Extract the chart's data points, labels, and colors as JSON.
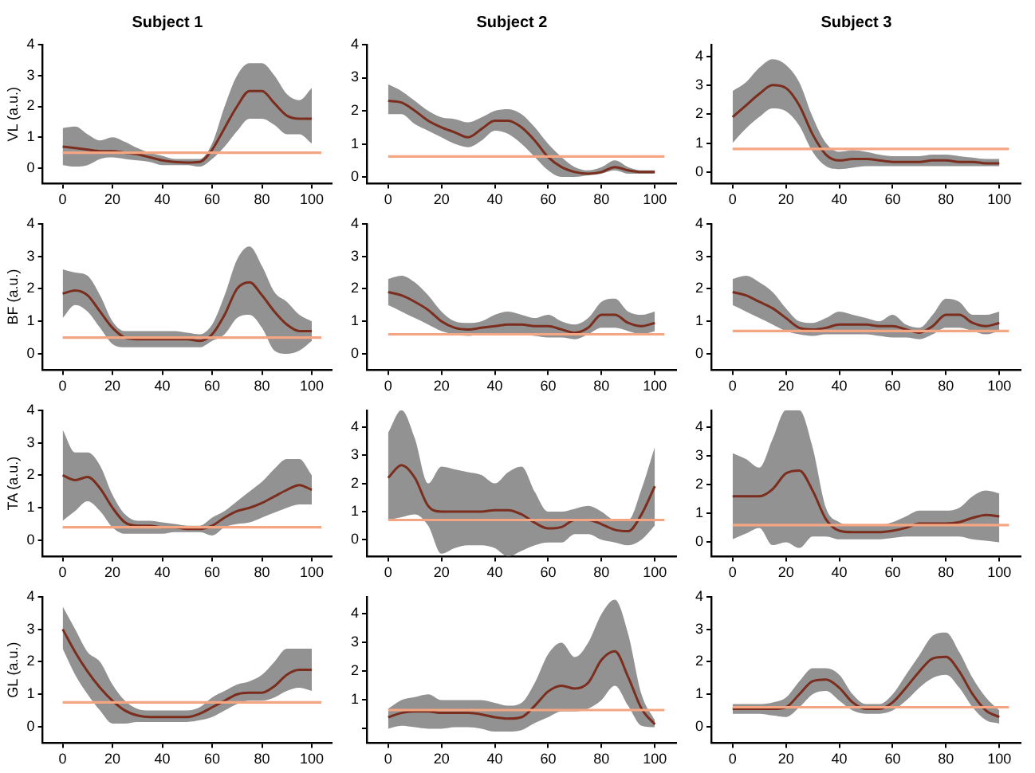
{
  "chart_data": [
    {
      "type": "line",
      "title": "Subject 1",
      "ylabel": "VL (a.u.)",
      "x": [
        0,
        5,
        10,
        15,
        20,
        25,
        30,
        35,
        40,
        45,
        50,
        55,
        60,
        65,
        70,
        75,
        80,
        85,
        90,
        95,
        100
      ],
      "xlim": [
        -8,
        108
      ],
      "ylim": [
        -0.5,
        4
      ],
      "xticks": [
        0,
        20,
        40,
        60,
        80,
        100
      ],
      "yticks": [
        0,
        1,
        2,
        3,
        4
      ],
      "ref_lines": [
        {
          "axis": "y",
          "value": 0.5,
          "color": "#f4a582"
        }
      ],
      "series": [
        {
          "color": "#7b2d1e",
          "values": [
            0.7,
            0.65,
            0.6,
            0.55,
            0.55,
            0.5,
            0.45,
            0.35,
            0.25,
            0.2,
            0.18,
            0.2,
            0.6,
            1.3,
            2.0,
            2.5,
            2.5,
            2.1,
            1.7,
            1.6,
            1.6
          ],
          "lower": [
            0.1,
            0.05,
            0.1,
            0.3,
            0.35,
            0.3,
            0.25,
            0.2,
            0.1,
            0.1,
            0.1,
            0.05,
            0.3,
            0.7,
            1.2,
            1.6,
            1.6,
            1.4,
            1.1,
            1.1,
            0.8
          ],
          "upper": [
            1.3,
            1.35,
            1.1,
            0.9,
            1.0,
            0.85,
            0.65,
            0.5,
            0.4,
            0.3,
            0.3,
            0.3,
            0.8,
            2.0,
            3.0,
            3.4,
            3.4,
            3.0,
            2.4,
            2.2,
            2.6
          ]
        }
      ]
    },
    {
      "type": "line",
      "title": "Subject 2",
      "x": [
        0,
        5,
        10,
        15,
        20,
        25,
        30,
        35,
        40,
        45,
        50,
        55,
        60,
        65,
        70,
        75,
        80,
        85,
        90,
        95,
        100
      ],
      "xlim": [
        -8,
        108
      ],
      "ylim": [
        -0.2,
        4
      ],
      "xticks": [
        0,
        20,
        40,
        60,
        80,
        100
      ],
      "yticks": [
        0,
        1,
        2,
        3,
        4
      ],
      "ref_lines": [
        {
          "axis": "y",
          "value": 0.62,
          "color": "#f4a582"
        }
      ],
      "series": [
        {
          "color": "#7b2d1e",
          "values": [
            2.3,
            2.25,
            2.0,
            1.7,
            1.5,
            1.35,
            1.2,
            1.45,
            1.7,
            1.7,
            1.5,
            1.1,
            0.6,
            0.3,
            0.15,
            0.1,
            0.15,
            0.3,
            0.2,
            0.15,
            0.15
          ],
          "lower": [
            1.9,
            1.9,
            1.6,
            1.4,
            1.2,
            1.0,
            0.9,
            1.1,
            1.4,
            1.3,
            1.0,
            0.6,
            0.2,
            0.0,
            0.0,
            0.05,
            0.1,
            0.2,
            0.1,
            0.1,
            0.1
          ],
          "upper": [
            2.8,
            2.6,
            2.3,
            2.0,
            1.8,
            1.75,
            1.65,
            1.8,
            2.0,
            2.05,
            1.9,
            1.5,
            1.0,
            0.6,
            0.3,
            0.2,
            0.3,
            0.5,
            0.3,
            0.2,
            0.2
          ]
        }
      ]
    },
    {
      "type": "line",
      "title": "Subject 3",
      "x": [
        0,
        5,
        10,
        15,
        20,
        25,
        30,
        35,
        40,
        45,
        50,
        55,
        60,
        65,
        70,
        75,
        80,
        85,
        90,
        95,
        100
      ],
      "xlim": [
        -8,
        108
      ],
      "ylim": [
        -0.4,
        4.4
      ],
      "xticks": [
        0,
        20,
        40,
        60,
        80,
        100
      ],
      "yticks": [
        0,
        1,
        2,
        3,
        4
      ],
      "ref_lines": [
        {
          "axis": "y",
          "value": 0.8,
          "color": "#f4a582"
        }
      ],
      "series": [
        {
          "color": "#7b2d1e",
          "values": [
            1.9,
            2.3,
            2.7,
            3.0,
            2.9,
            2.3,
            1.3,
            0.6,
            0.4,
            0.45,
            0.45,
            0.4,
            0.35,
            0.35,
            0.35,
            0.4,
            0.4,
            0.35,
            0.35,
            0.3,
            0.3
          ],
          "lower": [
            1.0,
            1.5,
            1.9,
            2.2,
            2.1,
            1.6,
            0.7,
            0.2,
            0.1,
            0.15,
            0.2,
            0.2,
            0.2,
            0.2,
            0.2,
            0.2,
            0.2,
            0.2,
            0.2,
            0.2,
            0.2
          ],
          "upper": [
            2.8,
            3.1,
            3.6,
            3.9,
            3.7,
            3.1,
            1.9,
            1.0,
            0.7,
            0.75,
            0.7,
            0.6,
            0.55,
            0.55,
            0.55,
            0.6,
            0.6,
            0.55,
            0.5,
            0.45,
            0.45
          ]
        }
      ]
    },
    {
      "type": "line",
      "ylabel": "BF (a.u.)",
      "x": [
        0,
        5,
        10,
        15,
        20,
        25,
        30,
        35,
        40,
        45,
        50,
        55,
        60,
        65,
        70,
        75,
        80,
        85,
        90,
        95,
        100
      ],
      "xlim": [
        -8,
        108
      ],
      "ylim": [
        -0.5,
        4
      ],
      "xticks": [
        0,
        20,
        40,
        60,
        80,
        100
      ],
      "yticks": [
        0,
        1,
        2,
        3,
        4
      ],
      "ref_lines": [
        {
          "axis": "y",
          "value": 0.5,
          "color": "#f4a582"
        }
      ],
      "series": [
        {
          "color": "#7b2d1e",
          "values": [
            1.85,
            1.95,
            1.8,
            1.3,
            0.8,
            0.5,
            0.45,
            0.45,
            0.45,
            0.45,
            0.45,
            0.4,
            0.6,
            1.2,
            2.0,
            2.2,
            1.8,
            1.3,
            0.9,
            0.7,
            0.7
          ],
          "lower": [
            1.1,
            1.5,
            1.3,
            0.8,
            0.3,
            0.2,
            0.2,
            0.2,
            0.2,
            0.2,
            0.2,
            0.2,
            0.4,
            0.6,
            1.1,
            1.2,
            0.8,
            0.1,
            0.0,
            0.1,
            0.4
          ],
          "upper": [
            2.6,
            2.5,
            2.4,
            1.8,
            1.0,
            0.7,
            0.7,
            0.7,
            0.7,
            0.7,
            0.65,
            0.6,
            0.9,
            1.8,
            2.9,
            3.3,
            2.7,
            1.9,
            1.6,
            1.2,
            1.0
          ]
        }
      ]
    },
    {
      "type": "line",
      "x": [
        0,
        5,
        10,
        15,
        20,
        25,
        30,
        35,
        40,
        45,
        50,
        55,
        60,
        65,
        70,
        75,
        80,
        85,
        90,
        95,
        100
      ],
      "xlim": [
        -8,
        108
      ],
      "ylim": [
        -0.5,
        4
      ],
      "xticks": [
        0,
        20,
        40,
        60,
        80,
        100
      ],
      "yticks": [
        0,
        1,
        2,
        3,
        4
      ],
      "ref_lines": [
        {
          "axis": "y",
          "value": 0.6,
          "color": "#f4a582"
        }
      ],
      "series": [
        {
          "color": "#7b2d1e",
          "values": [
            1.9,
            1.8,
            1.6,
            1.35,
            1.0,
            0.8,
            0.75,
            0.8,
            0.85,
            0.9,
            0.9,
            0.85,
            0.85,
            0.75,
            0.65,
            0.8,
            1.2,
            1.2,
            0.95,
            0.85,
            0.95
          ],
          "lower": [
            1.5,
            1.3,
            1.1,
            0.9,
            0.7,
            0.6,
            0.55,
            0.6,
            0.6,
            0.6,
            0.6,
            0.55,
            0.5,
            0.5,
            0.45,
            0.6,
            0.8,
            0.8,
            0.7,
            0.6,
            0.7
          ],
          "upper": [
            2.3,
            2.4,
            2.2,
            1.8,
            1.3,
            1.0,
            0.95,
            1.0,
            1.2,
            1.3,
            1.2,
            1.1,
            1.2,
            1.0,
            0.9,
            1.1,
            1.6,
            1.7,
            1.3,
            1.2,
            1.3
          ]
        }
      ]
    },
    {
      "type": "line",
      "x": [
        0,
        5,
        10,
        15,
        20,
        25,
        30,
        35,
        40,
        45,
        50,
        55,
        60,
        65,
        70,
        75,
        80,
        85,
        90,
        95,
        100
      ],
      "xlim": [
        -8,
        108
      ],
      "ylim": [
        -0.5,
        4
      ],
      "xticks": [
        0,
        20,
        40,
        60,
        80,
        100
      ],
      "yticks": [
        0,
        1,
        2,
        3,
        4
      ],
      "ref_lines": [
        {
          "axis": "y",
          "value": 0.7,
          "color": "#f4a582"
        }
      ],
      "series": [
        {
          "color": "#7b2d1e",
          "values": [
            1.9,
            1.8,
            1.6,
            1.4,
            1.1,
            0.8,
            0.75,
            0.8,
            0.9,
            0.9,
            0.9,
            0.85,
            0.85,
            0.75,
            0.65,
            0.85,
            1.2,
            1.2,
            0.95,
            0.85,
            0.95
          ],
          "lower": [
            1.5,
            1.3,
            1.1,
            0.9,
            0.7,
            0.6,
            0.55,
            0.6,
            0.6,
            0.6,
            0.6,
            0.55,
            0.5,
            0.5,
            0.45,
            0.6,
            0.8,
            0.8,
            0.7,
            0.6,
            0.7
          ],
          "upper": [
            2.3,
            2.4,
            2.2,
            1.9,
            1.4,
            1.0,
            0.95,
            1.1,
            1.3,
            1.2,
            1.1,
            1.0,
            1.2,
            0.9,
            0.8,
            1.2,
            1.7,
            1.6,
            1.2,
            1.2,
            1.3
          ]
        }
      ]
    },
    {
      "type": "line",
      "ylabel": "TA (a.u.)",
      "x": [
        0,
        5,
        10,
        15,
        20,
        25,
        30,
        35,
        40,
        45,
        50,
        55,
        60,
        65,
        70,
        75,
        80,
        85,
        90,
        95,
        100
      ],
      "xlim": [
        -8,
        108
      ],
      "ylim": [
        -0.5,
        4
      ],
      "xticks": [
        0,
        20,
        40,
        60,
        80,
        100
      ],
      "yticks": [
        0,
        1,
        2,
        3,
        4
      ],
      "ref_lines": [
        {
          "axis": "y",
          "value": 0.4,
          "color": "#f4a582"
        }
      ],
      "series": [
        {
          "color": "#7b2d1e",
          "values": [
            2.0,
            1.85,
            1.95,
            1.6,
            1.0,
            0.55,
            0.45,
            0.45,
            0.4,
            0.4,
            0.35,
            0.35,
            0.45,
            0.7,
            0.9,
            1.0,
            1.15,
            1.35,
            1.55,
            1.7,
            1.55
          ],
          "lower": [
            0.6,
            0.9,
            1.2,
            0.9,
            0.4,
            0.2,
            0.2,
            0.2,
            0.2,
            0.25,
            0.25,
            0.25,
            0.15,
            0.4,
            0.5,
            0.55,
            0.7,
            0.85,
            1.0,
            1.1,
            1.1
          ],
          "upper": [
            3.4,
            2.7,
            2.7,
            2.3,
            1.4,
            0.8,
            0.6,
            0.6,
            0.55,
            0.5,
            0.45,
            0.45,
            0.7,
            0.9,
            1.2,
            1.5,
            1.8,
            2.2,
            2.5,
            2.5,
            2.0
          ]
        }
      ]
    },
    {
      "type": "line",
      "x": [
        0,
        5,
        10,
        15,
        20,
        25,
        30,
        35,
        40,
        45,
        50,
        55,
        60,
        65,
        70,
        75,
        80,
        85,
        90,
        95,
        100
      ],
      "xlim": [
        -8,
        108
      ],
      "ylim": [
        -0.6,
        4.6
      ],
      "xticks": [
        0,
        20,
        40,
        60,
        80,
        100
      ],
      "yticks": [
        0,
        1,
        2,
        3,
        4
      ],
      "ref_lines": [
        {
          "axis": "y",
          "value": 0.7,
          "color": "#f4a582"
        }
      ],
      "series": [
        {
          "color": "#7b2d1e",
          "values": [
            2.2,
            2.65,
            2.2,
            1.2,
            1.0,
            1.0,
            1.0,
            1.0,
            1.05,
            1.05,
            0.9,
            0.6,
            0.4,
            0.45,
            0.7,
            0.7,
            0.55,
            0.35,
            0.3,
            0.9,
            1.9
          ],
          "lower": [
            0.7,
            0.8,
            0.9,
            0.5,
            -0.5,
            -0.3,
            -0.2,
            -0.2,
            -0.3,
            -0.6,
            -0.4,
            -0.2,
            -0.1,
            -0.1,
            0.2,
            0.2,
            0.0,
            -0.1,
            -0.2,
            0.0,
            0.5
          ],
          "upper": [
            3.8,
            4.6,
            3.6,
            2.0,
            2.6,
            2.5,
            2.4,
            2.3,
            2.0,
            2.4,
            2.6,
            1.7,
            1.0,
            1.0,
            1.1,
            1.2,
            1.0,
            0.7,
            0.7,
            1.8,
            3.3
          ]
        }
      ]
    },
    {
      "type": "line",
      "x": [
        0,
        5,
        10,
        15,
        20,
        25,
        30,
        35,
        40,
        45,
        50,
        55,
        60,
        65,
        70,
        75,
        80,
        85,
        90,
        95,
        100
      ],
      "xlim": [
        -8,
        108
      ],
      "ylim": [
        -0.5,
        4.6
      ],
      "xticks": [
        0,
        20,
        40,
        60,
        80,
        100
      ],
      "yticks": [
        0,
        1,
        2,
        3,
        4
      ],
      "ref_lines": [
        {
          "axis": "y",
          "value": 0.6,
          "color": "#f4a582"
        }
      ],
      "series": [
        {
          "color": "#7b2d1e",
          "values": [
            1.6,
            1.6,
            1.6,
            1.85,
            2.4,
            2.5,
            1.8,
            0.8,
            0.4,
            0.35,
            0.35,
            0.35,
            0.4,
            0.5,
            0.65,
            0.65,
            0.65,
            0.7,
            0.85,
            0.95,
            0.9
          ],
          "lower": [
            0.1,
            0.3,
            0.5,
            -0.1,
            0.0,
            -0.2,
            0.2,
            0.2,
            0.1,
            0.1,
            0.1,
            0.1,
            0.15,
            0.2,
            0.2,
            0.2,
            0.2,
            0.2,
            0.1,
            0.05,
            0.0
          ],
          "upper": [
            3.1,
            2.9,
            2.6,
            3.6,
            4.6,
            4.6,
            3.3,
            1.2,
            0.7,
            0.6,
            0.6,
            0.6,
            0.7,
            0.9,
            1.1,
            1.1,
            1.1,
            1.2,
            1.6,
            1.8,
            1.7
          ]
        }
      ]
    },
    {
      "type": "line",
      "ylabel": "GL (a.u.)",
      "x": [
        0,
        5,
        10,
        15,
        20,
        25,
        30,
        35,
        40,
        45,
        50,
        55,
        60,
        65,
        70,
        75,
        80,
        85,
        90,
        95,
        100
      ],
      "xlim": [
        -8,
        108
      ],
      "ylim": [
        -0.5,
        4
      ],
      "xticks": [
        0,
        20,
        40,
        60,
        80,
        100
      ],
      "yticks": [
        0,
        1,
        2,
        3,
        4
      ],
      "ref_lines": [
        {
          "axis": "y",
          "value": 0.75,
          "color": "#f4a582"
        }
      ],
      "series": [
        {
          "color": "#7b2d1e",
          "values": [
            3.0,
            2.3,
            1.7,
            1.2,
            0.8,
            0.5,
            0.35,
            0.3,
            0.3,
            0.3,
            0.3,
            0.4,
            0.6,
            0.8,
            1.0,
            1.05,
            1.05,
            1.25,
            1.6,
            1.75,
            1.75
          ],
          "lower": [
            2.4,
            1.6,
            1.0,
            0.5,
            0.1,
            0.1,
            0.15,
            0.15,
            0.15,
            0.15,
            0.15,
            0.2,
            0.3,
            0.5,
            0.7,
            0.8,
            0.8,
            0.9,
            1.1,
            1.2,
            1.1
          ],
          "upper": [
            3.7,
            3.0,
            2.3,
            2.0,
            1.3,
            0.8,
            0.55,
            0.5,
            0.5,
            0.5,
            0.5,
            0.6,
            0.9,
            1.1,
            1.3,
            1.4,
            1.6,
            2.0,
            2.4,
            2.4,
            2.4
          ]
        }
      ]
    },
    {
      "type": "line",
      "x": [
        0,
        5,
        10,
        15,
        20,
        25,
        30,
        35,
        40,
        45,
        50,
        55,
        60,
        65,
        70,
        75,
        80,
        85,
        90,
        95,
        100
      ],
      "xlim": [
        -8,
        108
      ],
      "ylim": [
        -0.5,
        4.6
      ],
      "xticks": [
        0,
        20,
        40,
        60,
        80,
        100
      ],
      "yticks": [
        {
          "value": 0,
          "label": null
        },
        1,
        2,
        3,
        4
      ],
      "ref_lines": [
        {
          "axis": "y",
          "value": 0.65,
          "color": "#f4a582"
        }
      ],
      "series": [
        {
          "color": "#7b2d1e",
          "values": [
            0.4,
            0.55,
            0.6,
            0.6,
            0.55,
            0.55,
            0.55,
            0.5,
            0.4,
            0.35,
            0.4,
            0.8,
            1.3,
            1.5,
            1.4,
            1.6,
            2.4,
            2.7,
            1.8,
            0.7,
            0.15
          ],
          "lower": [
            0.0,
            0.1,
            0.05,
            0.0,
            0.0,
            0.05,
            0.05,
            0.0,
            -0.1,
            -0.1,
            -0.05,
            0.2,
            0.4,
            0.6,
            0.6,
            0.7,
            1.0,
            1.5,
            0.8,
            0.1,
            0.05
          ],
          "upper": [
            0.7,
            1.0,
            1.1,
            1.2,
            1.0,
            1.0,
            1.0,
            1.0,
            0.9,
            0.8,
            0.9,
            1.6,
            2.6,
            3.0,
            2.5,
            3.0,
            4.0,
            4.5,
            3.3,
            1.2,
            0.3
          ]
        }
      ]
    },
    {
      "type": "line",
      "x": [
        0,
        5,
        10,
        15,
        20,
        25,
        30,
        35,
        40,
        45,
        50,
        55,
        60,
        65,
        70,
        75,
        80,
        85,
        90,
        95,
        100
      ],
      "xlim": [
        -8,
        108
      ],
      "ylim": [
        -0.5,
        4
      ],
      "xticks": [
        0,
        20,
        40,
        60,
        80,
        100
      ],
      "yticks": [
        0,
        1,
        2,
        3,
        4
      ],
      "ref_lines": [
        {
          "axis": "y",
          "value": 0.6,
          "color": "#f4a582"
        }
      ],
      "series": [
        {
          "color": "#7b2d1e",
          "values": [
            0.55,
            0.55,
            0.55,
            0.55,
            0.6,
            1.0,
            1.4,
            1.45,
            1.2,
            0.75,
            0.55,
            0.55,
            0.75,
            1.2,
            1.7,
            2.1,
            2.15,
            1.7,
            1.0,
            0.5,
            0.3
          ],
          "lower": [
            0.4,
            0.4,
            0.4,
            0.35,
            0.3,
            0.6,
            1.0,
            1.1,
            0.8,
            0.5,
            0.4,
            0.4,
            0.5,
            0.8,
            1.2,
            1.5,
            1.6,
            1.2,
            0.6,
            0.2,
            0.1
          ],
          "upper": [
            0.7,
            0.7,
            0.7,
            0.75,
            0.9,
            1.4,
            1.8,
            1.8,
            1.6,
            1.0,
            0.7,
            0.7,
            1.0,
            1.6,
            2.2,
            2.8,
            2.9,
            2.3,
            1.5,
            0.9,
            0.5
          ]
        }
      ]
    }
  ]
}
